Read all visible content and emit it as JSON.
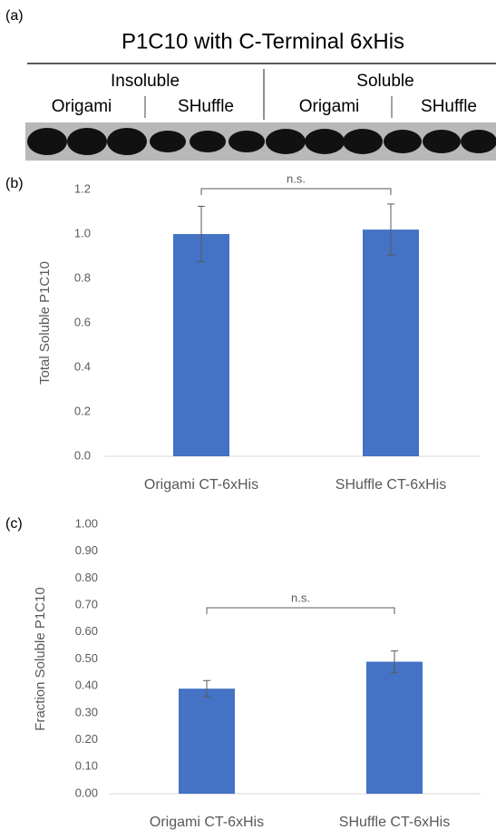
{
  "blot": {
    "panel_label": "(a)",
    "title": "P1C10 with C-Terminal 6xHis",
    "groups": [
      {
        "label": "Insoluble",
        "lanes": [
          "Origami",
          "SHuffle"
        ]
      },
      {
        "label": "Soluble",
        "lanes": [
          "Origami",
          "SHuffle"
        ]
      }
    ]
  },
  "chart_data": [
    {
      "type": "bar",
      "panel_label": "(b)",
      "y_label": "Total Soluble P1C10",
      "categories": [
        "Origami CT-6xHis",
        "SHuffle CT-6xHis"
      ],
      "values": [
        1.0,
        1.02
      ],
      "errors": [
        0.125,
        0.115
      ],
      "color": "#4472c4",
      "ylim": [
        0,
        1.2
      ],
      "yticks": [
        {
          "value": 0,
          "label": "0.0"
        },
        0.2,
        0.4,
        0.6,
        0.8,
        {
          "value": 1,
          "label": "1.0"
        },
        1.2
      ],
      "annotation": "n.s."
    },
    {
      "type": "bar",
      "panel_label": "(c)",
      "y_label": "Fraction Soluble P1C10",
      "categories": [
        "Origami CT-6xHis",
        "SHuffle CT-6xHis"
      ],
      "values": [
        0.39,
        0.49
      ],
      "errors": [
        0.03,
        0.04
      ],
      "color": "#4472c4",
      "ylim": [
        0,
        1
      ],
      "yticks": [
        {
          "value": 0,
          "label": "0.00"
        },
        {
          "value": 0.1,
          "label": "0.10"
        },
        {
          "value": 0.2,
          "label": "0.20"
        },
        {
          "value": 0.3,
          "label": "0.30"
        },
        {
          "value": 0.4,
          "label": "0.40"
        },
        {
          "value": 0.5,
          "label": "0.50"
        },
        {
          "value": 0.6,
          "label": "0.60"
        },
        {
          "value": 0.7,
          "label": "0.70"
        },
        {
          "value": 0.8,
          "label": "0.80"
        },
        {
          "value": 0.9,
          "label": "0.90"
        },
        {
          "value": 1,
          "label": "1.00"
        }
      ],
      "annotation": "n.s."
    }
  ]
}
